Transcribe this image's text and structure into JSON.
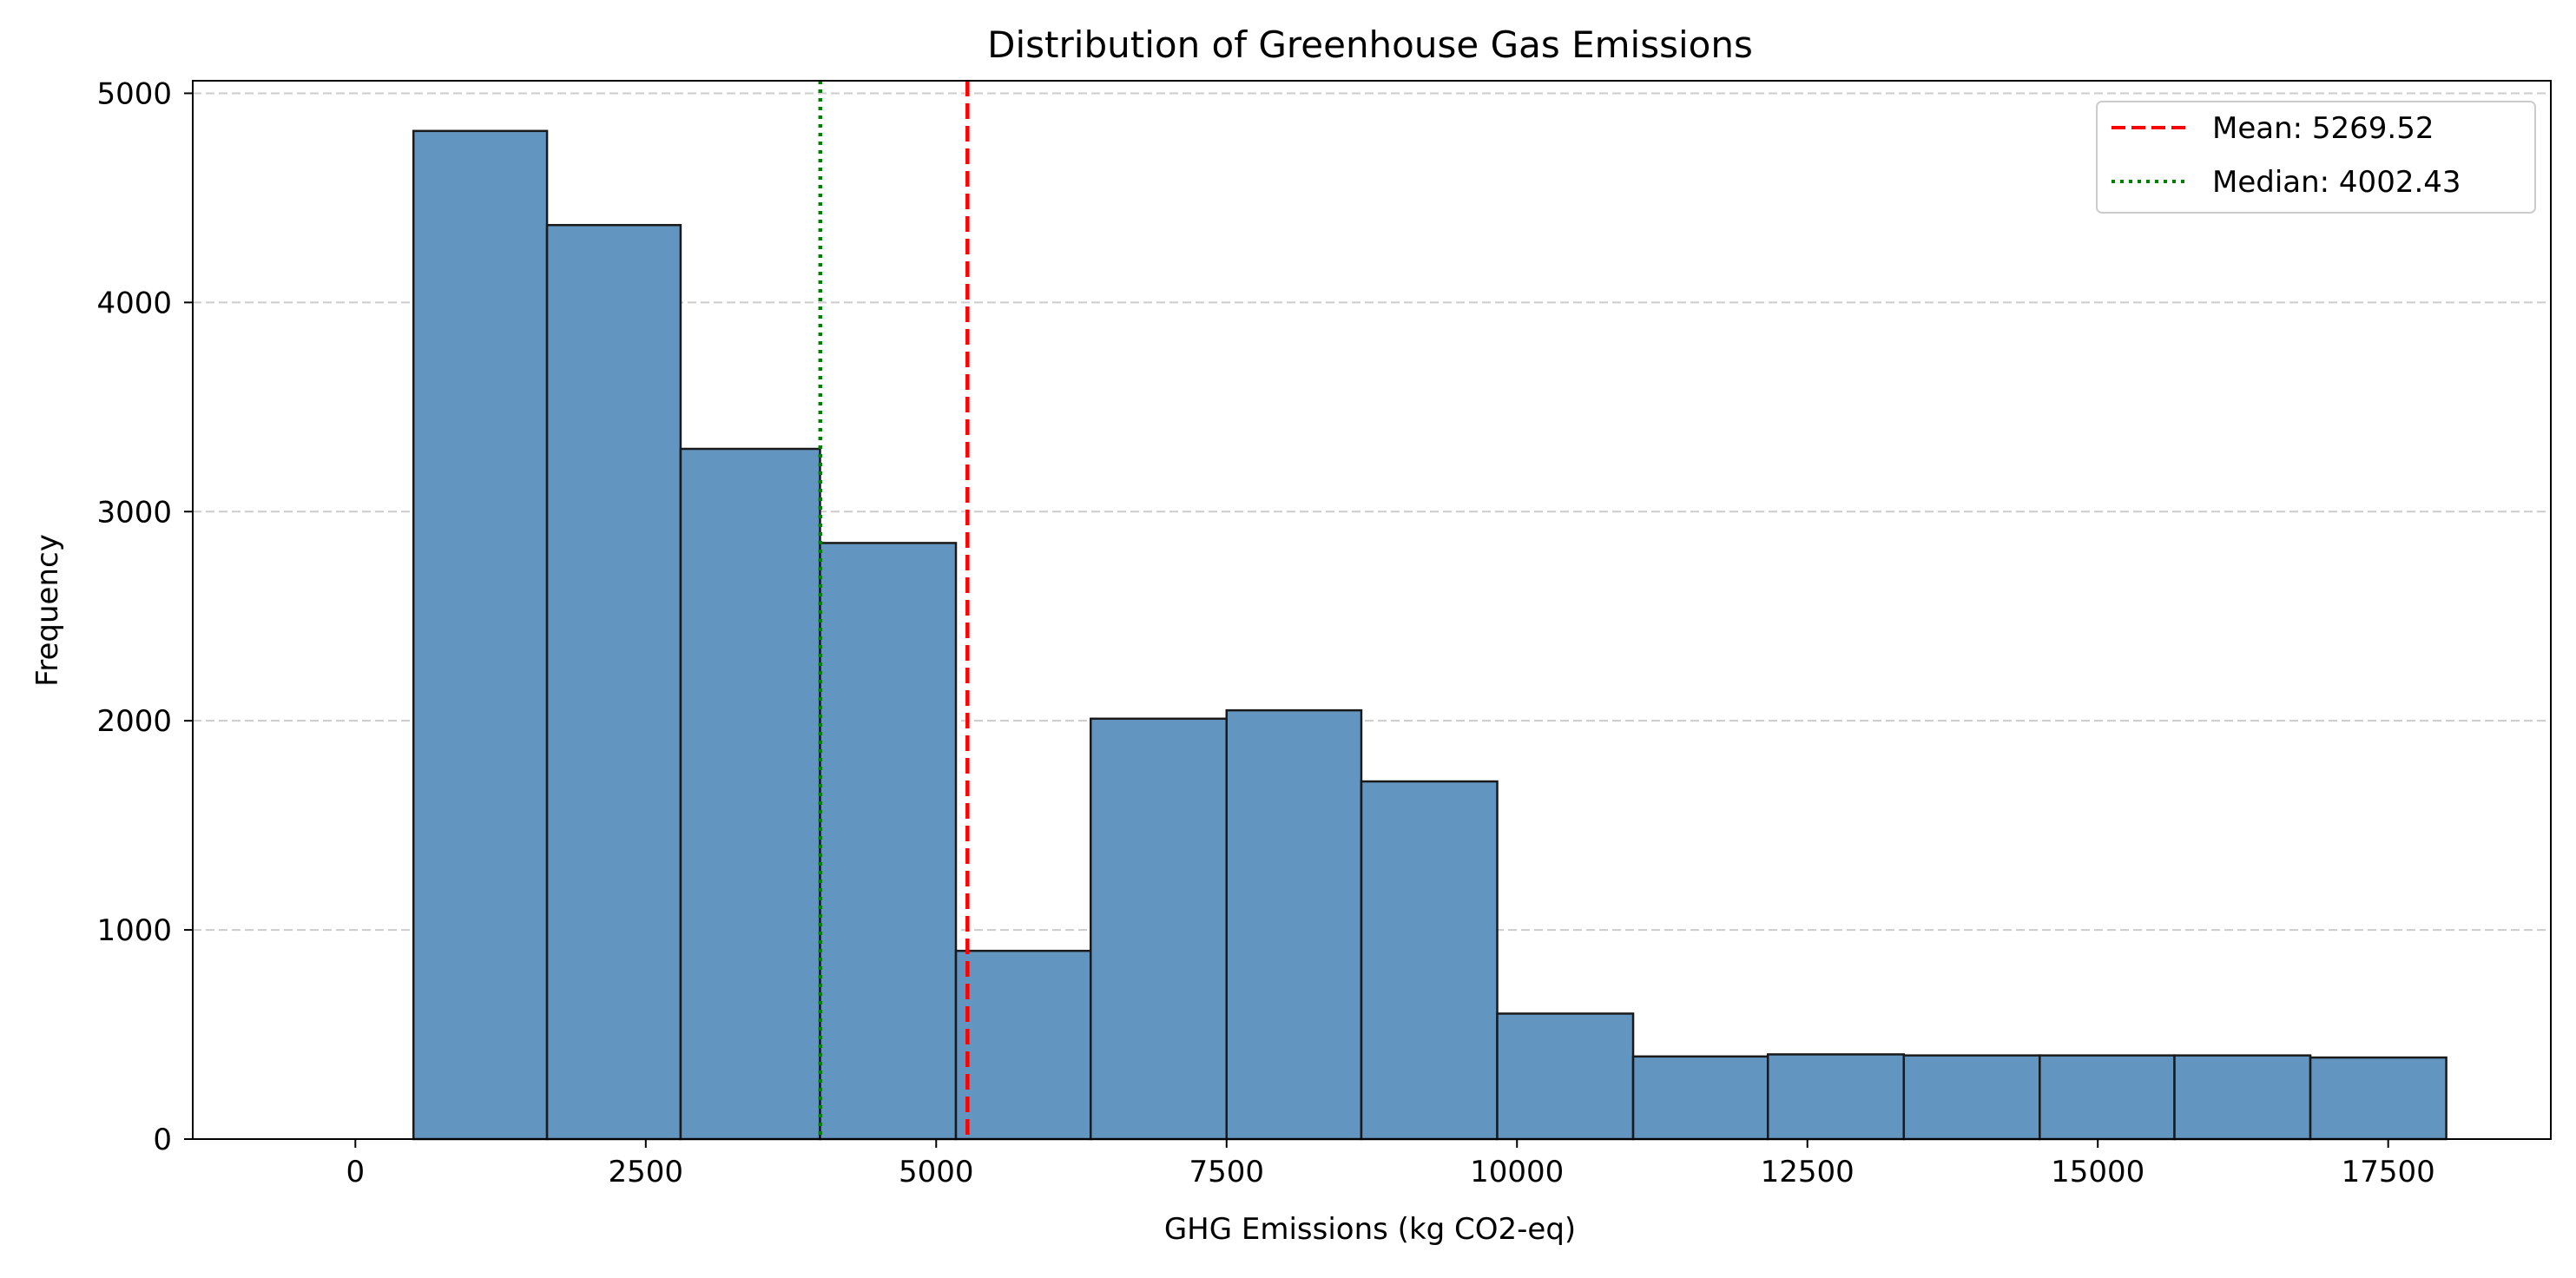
{
  "chart_data": {
    "type": "histogram",
    "title": "Distribution of Greenhouse Gas Emissions",
    "xlabel": "GHG Emissions (kg CO2-eq)",
    "ylabel": "Frequency",
    "xlim": [
      -1400,
      18900
    ],
    "ylim": [
      0,
      5060
    ],
    "x_ticks": [
      0,
      2500,
      5000,
      7500,
      10000,
      12500,
      15000,
      17500
    ],
    "y_ticks": [
      0,
      1000,
      2000,
      3000,
      4000,
      5000
    ],
    "grid": {
      "axis": "y",
      "style": "dashed",
      "color": "#cccccc"
    },
    "bar_color": "#6295c0",
    "bar_edge_color": "#1a1a1a",
    "bins": [
      {
        "start": 500,
        "end": 1650,
        "count": 4820
      },
      {
        "start": 1650,
        "end": 2800,
        "count": 4370
      },
      {
        "start": 2800,
        "end": 4000,
        "count": 3300
      },
      {
        "start": 4000,
        "end": 5170,
        "count": 2850
      },
      {
        "start": 5170,
        "end": 6330,
        "count": 900
      },
      {
        "start": 6330,
        "end": 7500,
        "count": 2010
      },
      {
        "start": 7500,
        "end": 8660,
        "count": 2050
      },
      {
        "start": 8660,
        "end": 9830,
        "count": 1710
      },
      {
        "start": 9830,
        "end": 11000,
        "count": 600
      },
      {
        "start": 11000,
        "end": 12160,
        "count": 395
      },
      {
        "start": 12160,
        "end": 13330,
        "count": 405
      },
      {
        "start": 13330,
        "end": 14500,
        "count": 400
      },
      {
        "start": 14500,
        "end": 15660,
        "count": 400
      },
      {
        "start": 15660,
        "end": 16830,
        "count": 400
      },
      {
        "start": 16830,
        "end": 18000,
        "count": 390
      }
    ],
    "reference_lines": [
      {
        "label": "Mean: 5269.52",
        "x": 5269.52,
        "color": "#ff0000",
        "style": "dashed"
      },
      {
        "label": "Median: 4002.43",
        "x": 4002.43,
        "color": "#008000",
        "style": "dotted"
      }
    ],
    "legend": {
      "position": "top-right"
    }
  }
}
